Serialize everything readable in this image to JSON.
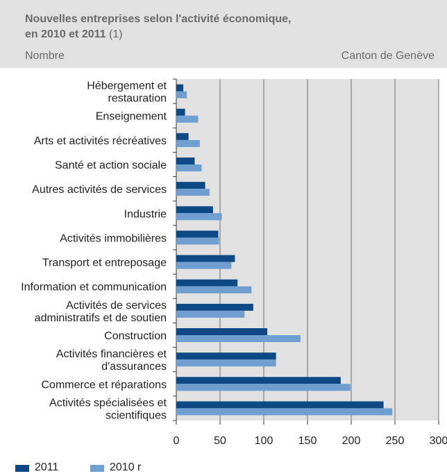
{
  "header": {
    "title_bold_1": "Nouvelles entreprises selon l'activité économique,",
    "title_bold_2": "en 2010 et 2011",
    "title_note": "(1)",
    "unit": "Nombre",
    "region": "Canton de Genève"
  },
  "colors": {
    "header_bg": "#e1e1e1",
    "plot_bg": "#e1e1e1",
    "grid": "#6e6e6e",
    "series_2011": "#0d4a85",
    "series_2010": "#6e9fd0"
  },
  "chart_data": {
    "type": "bar",
    "orientation": "horizontal",
    "categories": [
      [
        "Hébergement et",
        "restauration"
      ],
      [
        "Enseignement"
      ],
      [
        "Arts et activités récréatives"
      ],
      [
        "Santé et action sociale"
      ],
      [
        "Autres activités de services"
      ],
      [
        "Industrie"
      ],
      [
        "Activités immobilières"
      ],
      [
        "Transport et entreposage"
      ],
      [
        "Information et communication"
      ],
      [
        "Activités de services",
        "administratifs et de soutien"
      ],
      [
        "Construction"
      ],
      [
        "Activités financières et",
        "d'assurances"
      ],
      [
        "Commerce et réparations"
      ],
      [
        "Activités spécialisées et",
        "scientifiques"
      ]
    ],
    "series": [
      {
        "name": "2011",
        "values": [
          8,
          10,
          14,
          21,
          33,
          42,
          48,
          67,
          70,
          88,
          104,
          114,
          188,
          237
        ]
      },
      {
        "name": "2010 r",
        "values": [
          12,
          25,
          27,
          29,
          38,
          52,
          49,
          63,
          86,
          78,
          142,
          114,
          199,
          247
        ]
      }
    ],
    "xlim": [
      0,
      300
    ],
    "xticks": [
      0,
      50,
      100,
      150,
      200,
      250,
      300
    ],
    "grid": true,
    "legend_position": "bottom-left"
  }
}
